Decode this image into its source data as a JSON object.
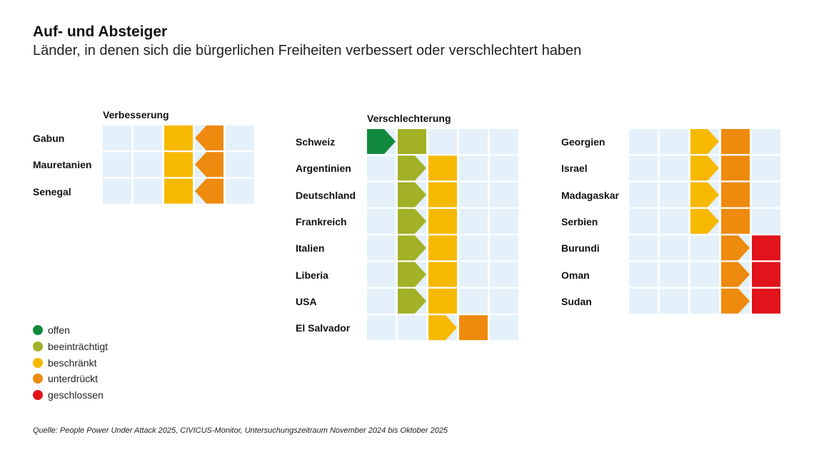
{
  "title": "Auf- und Absteiger",
  "subtitle": "Länder, in denen sich die bürgerlichen Freiheiten verbessert oder verschlechtert haben",
  "source": "Quelle: People Power Under Attack 2025, CIVICUS-Monitor, Untersuchungszeitraum November 2024 bis Oktober 2025",
  "colors": {
    "offen": "#128a3e",
    "beeinträchtigt": "#a2b125",
    "beschränkt": "#f7b900",
    "unterdrückt": "#ee8a0e",
    "geschlossen": "#e1131b",
    "empty": "#e4f1fa"
  },
  "legend": [
    {
      "key": "offen",
      "label": "offen"
    },
    {
      "key": "beeinträchtigt",
      "label": "beeinträchtigt"
    },
    {
      "key": "beschränkt",
      "label": "beschränkt"
    },
    {
      "key": "unterdrückt",
      "label": "unterdrückt"
    },
    {
      "key": "geschlossen",
      "label": "geschlossen"
    }
  ],
  "chart_data": {
    "type": "table",
    "levels": [
      "offen",
      "beeinträchtigt",
      "beschränkt",
      "unterdrückt",
      "geschlossen"
    ],
    "groups": [
      {
        "label": "Verbesserung",
        "direction": "up",
        "rows": [
          {
            "country": "Gabun",
            "from": "unterdrückt",
            "to": "beschränkt"
          },
          {
            "country": "Mauretanien",
            "from": "unterdrückt",
            "to": "beschränkt"
          },
          {
            "country": "Senegal",
            "from": "unterdrückt",
            "to": "beschränkt"
          }
        ]
      },
      {
        "label": "Verschlechterung",
        "direction": "down",
        "rows": [
          {
            "country": "Schweiz",
            "from": "offen",
            "to": "beeinträchtigt"
          },
          {
            "country": "Argentinien",
            "from": "beeinträchtigt",
            "to": "beschränkt"
          },
          {
            "country": "Deutschland",
            "from": "beeinträchtigt",
            "to": "beschränkt"
          },
          {
            "country": "Frankreich",
            "from": "beeinträchtigt",
            "to": "beschränkt"
          },
          {
            "country": "Italien",
            "from": "beeinträchtigt",
            "to": "beschränkt"
          },
          {
            "country": "Liberia",
            "from": "beeinträchtigt",
            "to": "beschränkt"
          },
          {
            "country": "USA",
            "from": "beeinträchtigt",
            "to": "beschränkt"
          },
          {
            "country": "El Salvador",
            "from": "beschränkt",
            "to": "unterdrückt"
          }
        ]
      },
      {
        "label": "",
        "direction": "down",
        "rows": [
          {
            "country": "Georgien",
            "from": "beschränkt",
            "to": "unterdrückt"
          },
          {
            "country": "Israel",
            "from": "beschränkt",
            "to": "unterdrückt"
          },
          {
            "country": "Madagaskar",
            "from": "beschränkt",
            "to": "unterdrückt"
          },
          {
            "country": "Serbien",
            "from": "beschränkt",
            "to": "unterdrückt"
          },
          {
            "country": "Burundi",
            "from": "unterdrückt",
            "to": "geschlossen"
          },
          {
            "country": "Oman",
            "from": "unterdrückt",
            "to": "geschlossen"
          },
          {
            "country": "Sudan",
            "from": "unterdrückt",
            "to": "geschlossen"
          }
        ]
      }
    ]
  }
}
